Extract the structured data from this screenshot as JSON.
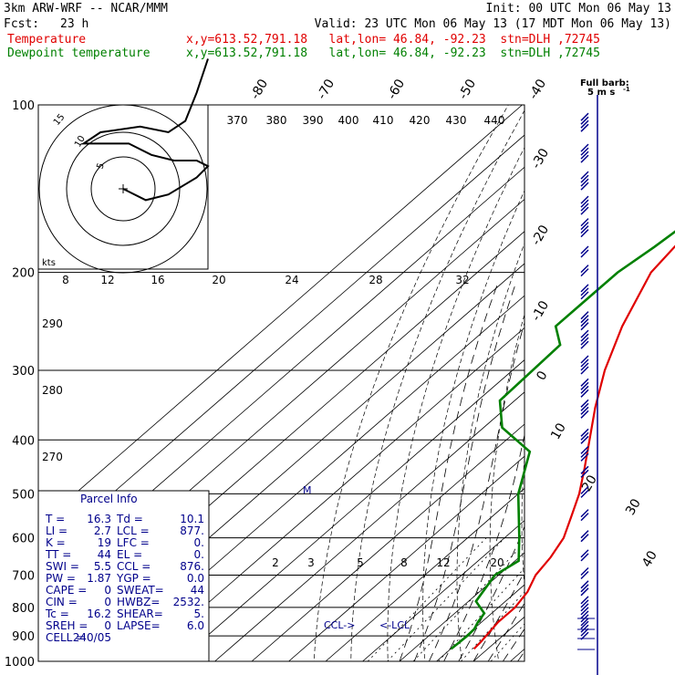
{
  "header": {
    "model": "3km ARW-WRF -- NCAR/MMM",
    "init": "Init: 00 UTC Mon 06 May 13",
    "fcst_label": "Fcst:",
    "fcst_value": "23 h",
    "valid": "Valid: 23 UTC Mon 06 May 13 (17 MDT Mon 06 May 13)",
    "temp_name": "Temperature",
    "temp_loc": "x,y=613.52,791.18   lat,lon= 46.84, -92.23  stn=DLH ,72745",
    "dew_name": "Dewpoint temperature",
    "dew_loc": "x,y=613.52,791.18   lat,lon= 46.84, -92.23  stn=DLH ,72745"
  },
  "barb_legend": {
    "title": "Full barb:",
    "value": "5 m s",
    "exp": "-1"
  },
  "colors": {
    "temperature": "#e00000",
    "dewpoint": "#008000",
    "parcel": "#00008b",
    "barbs": "#00008b"
  },
  "chart_data": {
    "type": "line",
    "xlabel": "",
    "ylabel": "",
    "y_axis_scale": "log",
    "pressure_levels": [
      100,
      200,
      300,
      400,
      500,
      600,
      700,
      800,
      900,
      1000
    ],
    "isotherm_labels": [
      -80,
      -70,
      -60,
      -50,
      -40,
      -30,
      -20,
      -10,
      0,
      10,
      20,
      30,
      40
    ],
    "theta_labels": [
      370,
      380,
      390,
      400,
      410,
      420,
      430,
      440
    ],
    "theta_side_labels": [
      290,
      280,
      270
    ],
    "mixing_ratio_upper": [
      8,
      12,
      16,
      20,
      24,
      28,
      32
    ],
    "mixing_ratio_lower": [
      2,
      3,
      5,
      8,
      12,
      20
    ],
    "series": [
      {
        "name": "Temperature",
        "p": [
          100,
          115,
          130,
          155,
          175,
          200,
          250,
          300,
          350,
          400,
          450,
          500,
          550,
          600,
          650,
          700,
          750,
          800,
          850,
          875,
          900,
          925,
          950
        ],
        "t": [
          -48,
          -50,
          -52,
          -53.5,
          -55,
          -53,
          -44,
          -35,
          -26,
          -17.5,
          -10,
          -3.5,
          1.5,
          6,
          8.5,
          10,
          13,
          14.5,
          14.5,
          15,
          15.5,
          16,
          16.3
        ]
      },
      {
        "name": "Dewpoint temperature",
        "p": [
          100,
          125,
          140,
          155,
          180,
          200,
          250,
          270,
          340,
          380,
          420,
          500,
          600,
          660,
          700,
          780,
          820,
          850,
          875,
          900,
          925,
          950
        ],
        "t": [
          -64,
          -65,
          -62,
          -58,
          -60,
          -62,
          -62,
          -55,
          -54,
          -45,
          -30,
          -20,
          -6,
          1,
          -1,
          2,
          8,
          9,
          10.2,
          10.4,
          10.3,
          10.1
        ]
      }
    ],
    "hodograph": {
      "speed_label": "kts",
      "speed_ticks": [
        5,
        10,
        15
      ],
      "curve_u": [
        0,
        4,
        8,
        13,
        15,
        13,
        9,
        5,
        1,
        -4,
        -7,
        -4,
        3,
        8,
        11,
        13,
        15
      ],
      "curve_v": [
        0,
        -2,
        -1,
        2,
        4,
        5,
        5,
        6,
        8,
        8,
        8,
        10,
        11,
        10,
        12,
        17,
        23
      ]
    },
    "wind_profile": {
      "p": [
        110,
        125,
        140,
        155,
        170,
        185,
        200,
        220,
        250,
        270,
        300,
        330,
        360,
        400,
        430,
        460,
        500,
        550,
        600,
        650,
        700,
        750,
        800,
        850,
        900
      ],
      "speed_ms": [
        25,
        25,
        25,
        25,
        20,
        10,
        10,
        15,
        20,
        25,
        25,
        25,
        20,
        15,
        15,
        10,
        10,
        10,
        10,
        10,
        10,
        15,
        15,
        20,
        20
      ]
    }
  },
  "parcel_info": {
    "title": "Parcel Info",
    "rows": [
      [
        "T  =",
        "16.3",
        "Td =",
        "10.1"
      ],
      [
        "LI =",
        "2.7",
        "LCL =",
        "877."
      ],
      [
        "K  =",
        "19",
        "LFC =",
        "0."
      ],
      [
        "TT =",
        "44",
        "EL  =",
        "0."
      ],
      [
        "SWI =",
        "5.5",
        "CCL =",
        "876."
      ],
      [
        "PW =",
        "1.87",
        "YGP =",
        "0.0"
      ],
      [
        "CAPE =",
        "0",
        "SWEAT=",
        "44"
      ],
      [
        "CIN =",
        "0",
        "HWBZ=",
        "2532."
      ],
      [
        "Tc =",
        "16.2",
        "SHEAR=",
        "5."
      ],
      [
        "SREH =",
        "0",
        "LAPSE=",
        "6.0"
      ],
      [
        "CELL =",
        "240/05",
        "",
        ""
      ]
    ]
  },
  "markers": {
    "ccl": "CCL->",
    "lcl": "<-LCL",
    "middle": "M"
  }
}
